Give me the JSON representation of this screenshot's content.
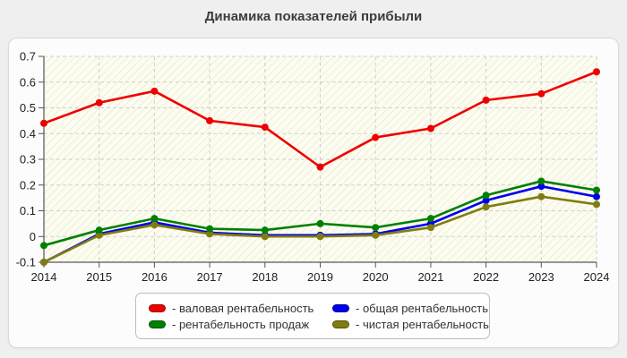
{
  "title": "Динамика показателей прибыли",
  "legend": {
    "items": [
      {
        "label": "- валовая рентабельность",
        "color": "#ee0000"
      },
      {
        "label": "- общая рентабельность",
        "color": "#0000ee"
      },
      {
        "label": "- рентабельность продаж",
        "color": "#008000"
      },
      {
        "label": "- чистая рентабельность",
        "color": "#807d0e"
      }
    ]
  },
  "chart_data": {
    "type": "line",
    "title": "Динамика показателей прибыли",
    "x": [
      2014,
      2015,
      2016,
      2017,
      2018,
      2019,
      2020,
      2021,
      2022,
      2023,
      2024
    ],
    "xtick_labels": [
      "2014",
      "2015",
      "2016",
      "2017",
      "2018",
      "2019",
      "2020",
      "2021",
      "2022",
      "2023",
      "2024"
    ],
    "ytick_labels": [
      "0.7",
      "0.6",
      "0.5",
      "0.4",
      "0.3",
      "0.2",
      "0.1",
      "0",
      "-0.1"
    ],
    "yticks": [
      0.7,
      0.6,
      0.5,
      0.4,
      0.3,
      0.2,
      0.1,
      0,
      -0.1
    ],
    "ylim": [
      -0.1,
      0.7
    ],
    "grid": true,
    "legend_position": "bottom",
    "plot_bg_color": "#fdfdef",
    "grid_color": "#cfcfcf",
    "axis_color": "#555555",
    "series": [
      {
        "name": "валовая рентабельность",
        "color": "#ee0000",
        "values": [
          0.44,
          0.52,
          0.565,
          0.45,
          0.425,
          0.27,
          0.385,
          0.42,
          0.53,
          0.555,
          0.64
        ]
      },
      {
        "name": "общая рентабельность",
        "color": "#0000ee",
        "values": [
          -0.1,
          0.01,
          0.055,
          0.015,
          0.005,
          0.005,
          0.01,
          0.05,
          0.14,
          0.195,
          0.155
        ]
      },
      {
        "name": "рентабельность продаж",
        "color": "#008000",
        "values": [
          -0.035,
          0.025,
          0.07,
          0.03,
          0.025,
          0.05,
          0.035,
          0.07,
          0.16,
          0.215,
          0.18
        ]
      },
      {
        "name": "чистая рентабельность",
        "color": "#807d0e",
        "values": [
          -0.1,
          0.005,
          0.045,
          0.01,
          0.0,
          0.0,
          0.005,
          0.035,
          0.115,
          0.155,
          0.125
        ]
      }
    ]
  }
}
